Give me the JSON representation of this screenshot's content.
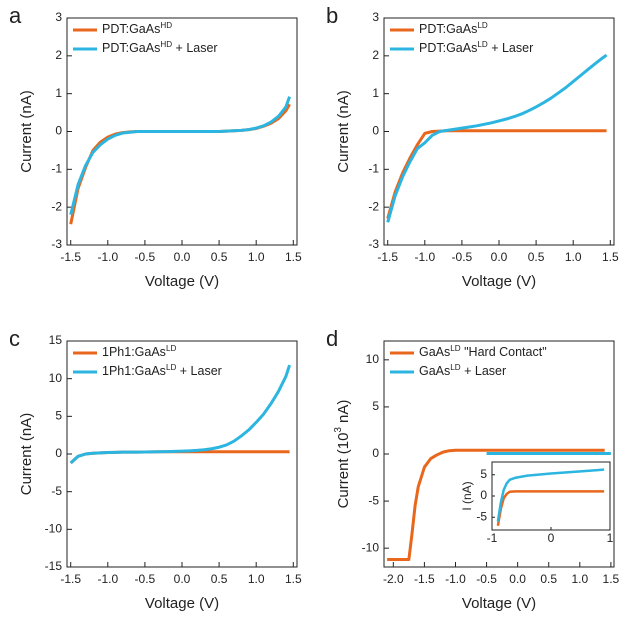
{
  "chart_data": [
    {
      "type": "line",
      "panel": "a",
      "xlabel": "Voltage (V)",
      "ylabel": "Current (nA)",
      "xlim": [
        -1.55,
        1.55
      ],
      "ylim": [
        -3,
        3
      ],
      "xticks": [
        {
          "value": -1.5,
          "label": "-1.5"
        },
        {
          "value": -1,
          "label": "-1.0"
        },
        {
          "value": -0.5,
          "label": "-0.5"
        },
        {
          "value": 0,
          "label": "0.0"
        },
        {
          "value": 0.5,
          "label": "0.5"
        },
        {
          "value": 1,
          "label": "1.0"
        },
        {
          "value": 1.5,
          "label": "1.5"
        }
      ],
      "yticks": [
        -3,
        -2,
        -1,
        0,
        1,
        2,
        3
      ],
      "x": [
        -1.5,
        -1.4,
        -1.3,
        -1.2,
        -1.1,
        -1.0,
        -0.9,
        -0.8,
        -0.7,
        -0.6,
        -0.5,
        -0.4,
        -0.3,
        -0.2,
        -0.1,
        0,
        0.1,
        0.2,
        0.3,
        0.4,
        0.5,
        0.6,
        0.7,
        0.8,
        0.9,
        1.0,
        1.1,
        1.2,
        1.3,
        1.4,
        1.45
      ],
      "series": [
        {
          "name": [
            "PDT:GaAs",
            "HD"
          ],
          "color": "#e8671c",
          "values": [
            -2.45,
            -1.5,
            -0.95,
            -0.5,
            -0.28,
            -0.15,
            -0.07,
            -0.03,
            -0.01,
            0,
            0,
            0,
            0,
            0,
            0,
            0,
            0,
            0,
            0,
            0,
            0,
            0.01,
            0.02,
            0.03,
            0.05,
            0.08,
            0.14,
            0.22,
            0.34,
            0.55,
            0.72
          ]
        },
        {
          "name": [
            "PDT:GaAs",
            "HD",
            " + Laser"
          ],
          "color": "#2bb5e0",
          "values": [
            -2.2,
            -1.4,
            -0.9,
            -0.55,
            -0.35,
            -0.2,
            -0.1,
            -0.04,
            -0.02,
            0,
            0,
            0,
            0,
            0,
            0,
            0,
            0,
            0,
            0,
            0,
            0,
            0.01,
            0.02,
            0.03,
            0.05,
            0.09,
            0.15,
            0.25,
            0.4,
            0.65,
            0.92
          ]
        }
      ]
    },
    {
      "type": "line",
      "panel": "b",
      "xlabel": "Voltage (V)",
      "ylabel": "Current (nA)",
      "xlim": [
        -1.55,
        1.55
      ],
      "ylim": [
        -3,
        3
      ],
      "xticks": [
        {
          "value": -1.5,
          "label": "-1.5"
        },
        {
          "value": -1,
          "label": "-1.0"
        },
        {
          "value": -0.5,
          "label": "-0.5"
        },
        {
          "value": 0,
          "label": "0.0"
        },
        {
          "value": 0.5,
          "label": "0.5"
        },
        {
          "value": 1,
          "label": "1.0"
        },
        {
          "value": 1.5,
          "label": "1.5"
        }
      ],
      "yticks": [
        -3,
        -2,
        -1,
        0,
        1,
        2,
        3
      ],
      "x": [
        -1.5,
        -1.4,
        -1.3,
        -1.2,
        -1.1,
        -1.0,
        -0.9,
        -0.8,
        -0.7,
        -0.6,
        -0.5,
        -0.4,
        -0.3,
        -0.2,
        -0.1,
        0,
        0.1,
        0.2,
        0.3,
        0.4,
        0.5,
        0.6,
        0.7,
        0.8,
        0.9,
        1.0,
        1.1,
        1.2,
        1.3,
        1.4,
        1.45
      ],
      "series": [
        {
          "name": [
            "PDT:GaAs",
            "LD"
          ],
          "color": "#e8671c",
          "values": [
            -2.3,
            -1.6,
            -1.1,
            -0.7,
            -0.35,
            -0.05,
            0,
            0.01,
            0.02,
            0.02,
            0.02,
            0.02,
            0.02,
            0.02,
            0.02,
            0.02,
            0.02,
            0.02,
            0.02,
            0.02,
            0.02,
            0.02,
            0.02,
            0.02,
            0.02,
            0.02,
            0.02,
            0.02,
            0.02,
            0.02,
            0.02
          ]
        },
        {
          "name": [
            "PDT:GaAs",
            "LD",
            " + Laser"
          ],
          "color": "#2bb5e0",
          "values": [
            -2.4,
            -1.7,
            -1.2,
            -0.8,
            -0.45,
            -0.3,
            -0.1,
            0,
            0.03,
            0.06,
            0.09,
            0.12,
            0.15,
            0.19,
            0.23,
            0.28,
            0.33,
            0.39,
            0.46,
            0.55,
            0.65,
            0.76,
            0.88,
            1.02,
            1.16,
            1.32,
            1.48,
            1.64,
            1.8,
            1.95,
            2.02
          ]
        }
      ]
    },
    {
      "type": "line",
      "panel": "c",
      "xlabel": "Voltage (V)",
      "ylabel": "Current (nA)",
      "xlim": [
        -1.55,
        1.55
      ],
      "ylim": [
        -15,
        15
      ],
      "xticks": [
        {
          "value": -1.5,
          "label": "-1.5"
        },
        {
          "value": -1,
          "label": "-1.0"
        },
        {
          "value": -0.5,
          "label": "-0.5"
        },
        {
          "value": 0,
          "label": "0.0"
        },
        {
          "value": 0.5,
          "label": "0.5"
        },
        {
          "value": 1,
          "label": "1.0"
        },
        {
          "value": 1.5,
          "label": "1.5"
        }
      ],
      "yticks": [
        -15,
        -10,
        -5,
        0,
        5,
        10,
        15
      ],
      "x": [
        -1.5,
        -1.4,
        -1.3,
        -1.2,
        -1.1,
        -1.0,
        -0.9,
        -0.8,
        -0.7,
        -0.6,
        -0.5,
        -0.4,
        -0.3,
        -0.2,
        -0.1,
        0,
        0.1,
        0.2,
        0.3,
        0.4,
        0.5,
        0.6,
        0.7,
        0.8,
        0.9,
        1.0,
        1.1,
        1.2,
        1.3,
        1.4,
        1.45
      ],
      "series": [
        {
          "name": [
            "1Ph1:GaAs",
            "LD"
          ],
          "color": "#e8671c",
          "values": [
            -1.2,
            -0.3,
            0,
            0.1,
            0.15,
            0.2,
            0.22,
            0.25,
            0.25,
            0.25,
            0.27,
            0.28,
            0.3,
            0.3,
            0.3,
            0.3,
            0.3,
            0.3,
            0.3,
            0.3,
            0.3,
            0.3,
            0.3,
            0.3,
            0.3,
            0.3,
            0.3,
            0.3,
            0.3,
            0.3,
            0.3
          ]
        },
        {
          "name": [
            "1Ph1:GaAs",
            "LD",
            " + Laser"
          ],
          "color": "#2bb5e0",
          "values": [
            -1.2,
            -0.3,
            0,
            0.1,
            0.15,
            0.2,
            0.22,
            0.25,
            0.25,
            0.25,
            0.27,
            0.28,
            0.3,
            0.32,
            0.35,
            0.38,
            0.42,
            0.48,
            0.56,
            0.7,
            0.9,
            1.2,
            1.7,
            2.4,
            3.2,
            4.2,
            5.3,
            6.7,
            8.3,
            10.3,
            11.8
          ]
        }
      ]
    },
    {
      "type": "line",
      "panel": "d",
      "xlabel": "Voltage (V)",
      "ylabel": [
        "Current (10",
        "3",
        " nA)"
      ],
      "xlim": [
        -2.15,
        1.55
      ],
      "ylim": [
        -12,
        12
      ],
      "xticks": [
        {
          "value": -2,
          "label": "-2.0"
        },
        {
          "value": -1.5,
          "label": "-1.5"
        },
        {
          "value": -1,
          "label": "-1.0"
        },
        {
          "value": -0.5,
          "label": "-0.5"
        },
        {
          "value": 0,
          "label": "0.0"
        },
        {
          "value": 0.5,
          "label": "0.5"
        },
        {
          "value": 1,
          "label": "1.0"
        },
        {
          "value": 1.5,
          "label": "1.5"
        }
      ],
      "yticks": [
        -10,
        -5,
        0,
        5,
        10
      ],
      "series": [
        {
          "name": [
            "GaAs",
            "LD",
            " \"Hard Contact\""
          ],
          "color": "#e8671c",
          "x": [
            -2.1,
            -1.8,
            -1.75,
            -1.7,
            -1.65,
            -1.6,
            -1.5,
            -1.4,
            -1.3,
            -1.2,
            -1.1,
            -1.0,
            -0.5,
            0,
            0.5,
            1.0,
            1.4
          ],
          "values": [
            -11.2,
            -11.2,
            -11.2,
            -8.5,
            -5.5,
            -3.5,
            -1.4,
            -0.5,
            -0.1,
            0.2,
            0.35,
            0.4,
            0.4,
            0.4,
            0.4,
            0.4,
            0.4
          ]
        },
        {
          "name": [
            "GaAs",
            "LD",
            " + Laser"
          ],
          "color": "#2bb5e0",
          "x": [
            -0.5,
            0,
            0.5,
            1.0,
            1.5
          ],
          "values": [
            0.05,
            0.05,
            0.05,
            0.05,
            0.05
          ]
        }
      ]
    },
    {
      "type": "line",
      "inset": true,
      "ylabel": "I (nA)",
      "xlim": [
        -1,
        1
      ],
      "ylim": [
        -8,
        8
      ],
      "xticks": [
        -1,
        0,
        1
      ],
      "yticks": [
        -5,
        0,
        5
      ],
      "series": [
        {
          "color": "#e8671c",
          "x": [
            -0.9,
            -0.85,
            -0.8,
            -0.75,
            -0.7,
            -0.6,
            -0.4,
            0,
            0.5,
            0.9
          ],
          "values": [
            -7,
            -3,
            -0.5,
            0.5,
            1,
            1.1,
            1.1,
            1.1,
            1.1,
            1.1
          ]
        },
        {
          "color": "#2bb5e0",
          "x": [
            -0.9,
            -0.85,
            -0.8,
            -0.75,
            -0.7,
            -0.6,
            -0.4,
            0,
            0.5,
            0.9
          ],
          "values": [
            -6,
            -1.5,
            1.5,
            3,
            3.8,
            4.3,
            4.8,
            5.3,
            5.8,
            6.2
          ]
        }
      ]
    }
  ]
}
